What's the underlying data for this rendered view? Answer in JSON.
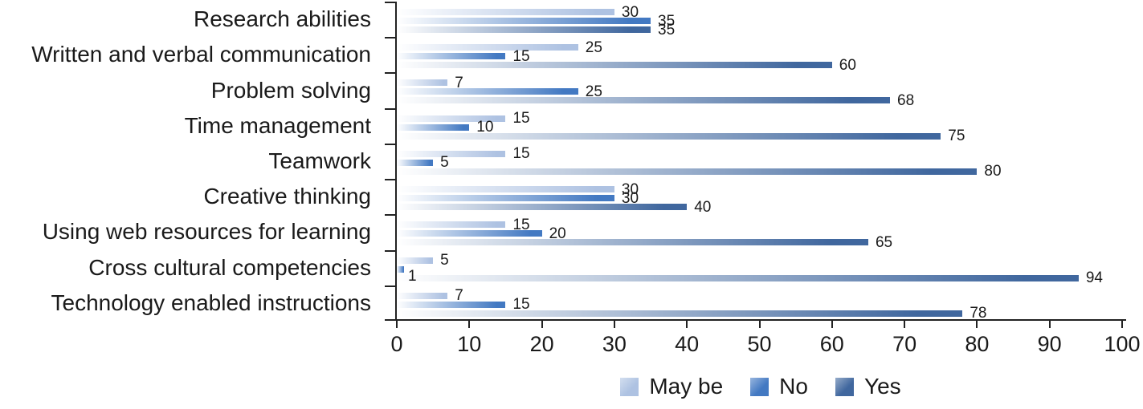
{
  "chart_data": {
    "type": "bar",
    "orientation": "horizontal",
    "grouped": true,
    "title": "",
    "xlabel": "",
    "ylabel": "",
    "xlim": [
      0,
      100
    ],
    "xticks": [
      0,
      10,
      20,
      30,
      40,
      50,
      60,
      70,
      80,
      90,
      100
    ],
    "grid": false,
    "legend_position": "bottom",
    "categories": [
      "Research abilities",
      "Written and verbal communication",
      "Problem solving",
      "Time management",
      "Teamwork",
      "Creative thinking",
      "Using web resources for learning",
      "Cross cultural competencies",
      "Technology enabled instructions"
    ],
    "series": [
      {
        "name": "May be",
        "color": "#aec2e2",
        "values": [
          30,
          25,
          7,
          15,
          15,
          30,
          15,
          5,
          7
        ]
      },
      {
        "name": "No",
        "color": "#4379c2",
        "values": [
          35,
          15,
          25,
          10,
          5,
          30,
          20,
          1,
          15
        ]
      },
      {
        "name": "Yes",
        "color": "#40679e",
        "values": [
          35,
          60,
          68,
          75,
          80,
          40,
          65,
          94,
          78
        ]
      }
    ],
    "bar_style": "gradient fade from white at left to series color at right, values labeled at bar ends"
  }
}
